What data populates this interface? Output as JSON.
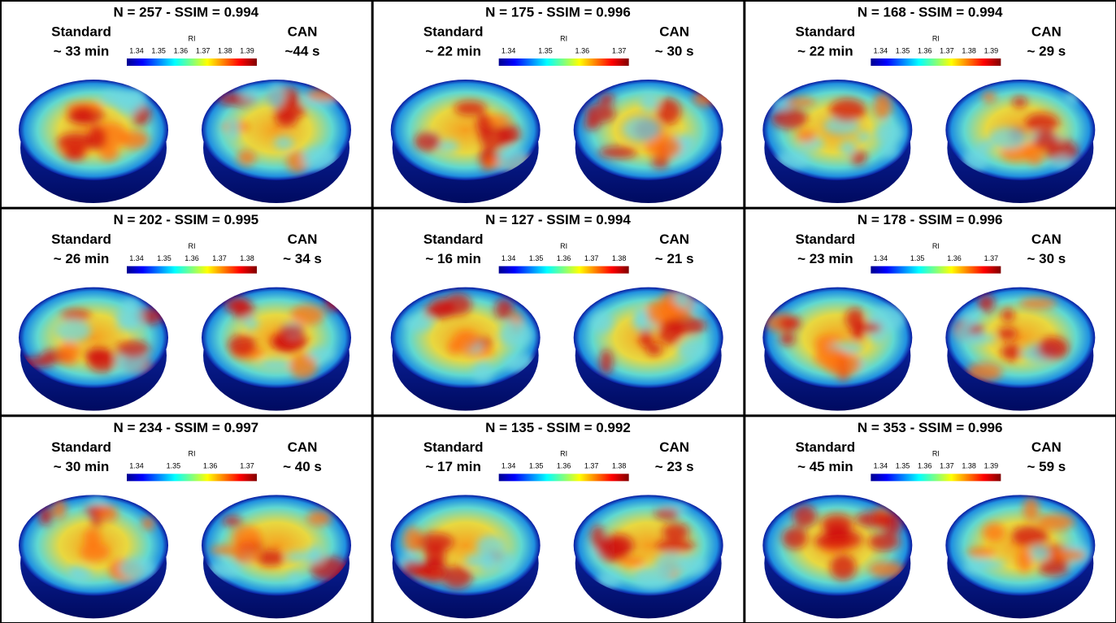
{
  "panels": [
    {
      "title": "N = 257 - SSIM = 0.994",
      "left": "Standard",
      "left_time": "~ 33 min",
      "right": "CAN",
      "right_time": "~44 s",
      "colorbar_label": "RI",
      "colorbar_ticks": [
        "1.34",
        "1.35",
        "1.36",
        "1.37",
        "1.38",
        "1.39"
      ]
    },
    {
      "title": "N = 175 - SSIM = 0.996",
      "left": "Standard",
      "left_time": "~ 22 min",
      "right": "CAN",
      "right_time": "~ 30 s",
      "colorbar_label": "RI",
      "colorbar_ticks": [
        "1.34",
        "1.35",
        "1.36",
        "1.37"
      ]
    },
    {
      "title": "N = 168 - SSIM = 0.994",
      "left": "Standard",
      "left_time": "~ 22 min",
      "right": "CAN",
      "right_time": "~ 29 s",
      "colorbar_label": "RI",
      "colorbar_ticks": [
        "1.34",
        "1.35",
        "1.36",
        "1.37",
        "1.38",
        "1.39"
      ]
    },
    {
      "title": "N = 202 - SSIM = 0.995",
      "left": "Standard",
      "left_time": "~ 26 min",
      "right": "CAN",
      "right_time": "~ 34 s",
      "colorbar_label": "RI",
      "colorbar_ticks": [
        "1.34",
        "1.35",
        "1.36",
        "1.37",
        "1.38"
      ]
    },
    {
      "title": "N = 127 - SSIM = 0.994",
      "left": "Standard",
      "left_time": "~ 16 min",
      "right": "CAN",
      "right_time": "~ 21 s",
      "colorbar_label": "RI",
      "colorbar_ticks": [
        "1.34",
        "1.35",
        "1.36",
        "1.37",
        "1.38"
      ]
    },
    {
      "title": "N = 178 - SSIM = 0.996",
      "left": "Standard",
      "left_time": "~ 23 min",
      "right": "CAN",
      "right_time": "~ 30 s",
      "colorbar_label": "RI",
      "colorbar_ticks": [
        "1.34",
        "1.35",
        "1.36",
        "1.37"
      ]
    },
    {
      "title": "N = 234 - SSIM = 0.997",
      "left": "Standard",
      "left_time": "~ 30 min",
      "right": "CAN",
      "right_time": "~ 40 s",
      "colorbar_label": "RI",
      "colorbar_ticks": [
        "1.34",
        "1.35",
        "1.36",
        "1.37"
      ]
    },
    {
      "title": "N = 135 - SSIM = 0.992",
      "left": "Standard",
      "left_time": "~ 17 min",
      "right": "CAN",
      "right_time": "~ 23 s",
      "colorbar_label": "RI",
      "colorbar_ticks": [
        "1.34",
        "1.35",
        "1.36",
        "1.37",
        "1.38"
      ]
    },
    {
      "title": "N = 353 - SSIM = 0.996",
      "left": "Standard",
      "left_time": "~ 45 min",
      "right": "CAN",
      "right_time": "~ 59 s",
      "colorbar_label": "RI",
      "colorbar_ticks": [
        "1.34",
        "1.35",
        "1.36",
        "1.37",
        "1.38",
        "1.39"
      ]
    }
  ]
}
